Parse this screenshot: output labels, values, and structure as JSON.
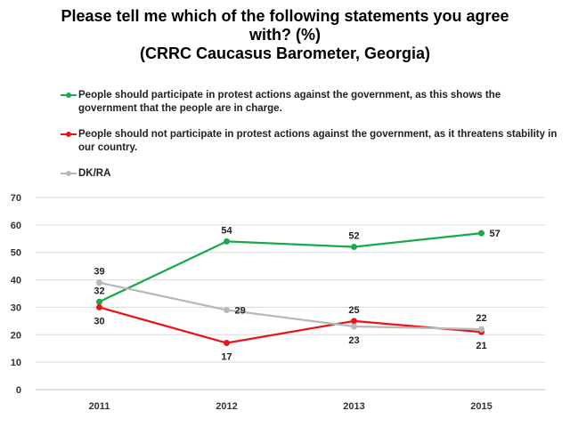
{
  "title_lines": [
    "Please tell me which of the following statements you agree",
    "with? (%)",
    "(CRRC Caucasus Barometer, Georgia)"
  ],
  "chart_data": {
    "type": "line",
    "title": "Please tell me which of the following statements you agree with? (%) (CRRC Caucasus Barometer, Georgia)",
    "categories": [
      "2011",
      "2012",
      "2013",
      "2015"
    ],
    "ylim": [
      0,
      70
    ],
    "yticks": [
      0,
      10,
      20,
      30,
      40,
      50,
      60,
      70
    ],
    "grid": true,
    "legend_position": "top",
    "series": [
      {
        "name": "People should participate in protest actions against the government, as this shows the government that the people are in charge.",
        "color": "#1aa84a",
        "values": [
          32,
          54,
          52,
          57
        ],
        "label_positions": [
          "above",
          "above",
          "above",
          "right"
        ]
      },
      {
        "name": "People should not participate in protest actions against the government, as it threatens stability in our country.",
        "color": "#e8141b",
        "values": [
          30,
          17,
          25,
          21
        ],
        "label_positions": [
          "below",
          "below",
          "above",
          "below"
        ]
      },
      {
        "name": "DK/RA",
        "color": "#b8b8b8",
        "values": [
          39,
          29,
          23,
          22
        ],
        "label_positions": [
          "above",
          "right",
          "below",
          "above"
        ]
      }
    ]
  }
}
